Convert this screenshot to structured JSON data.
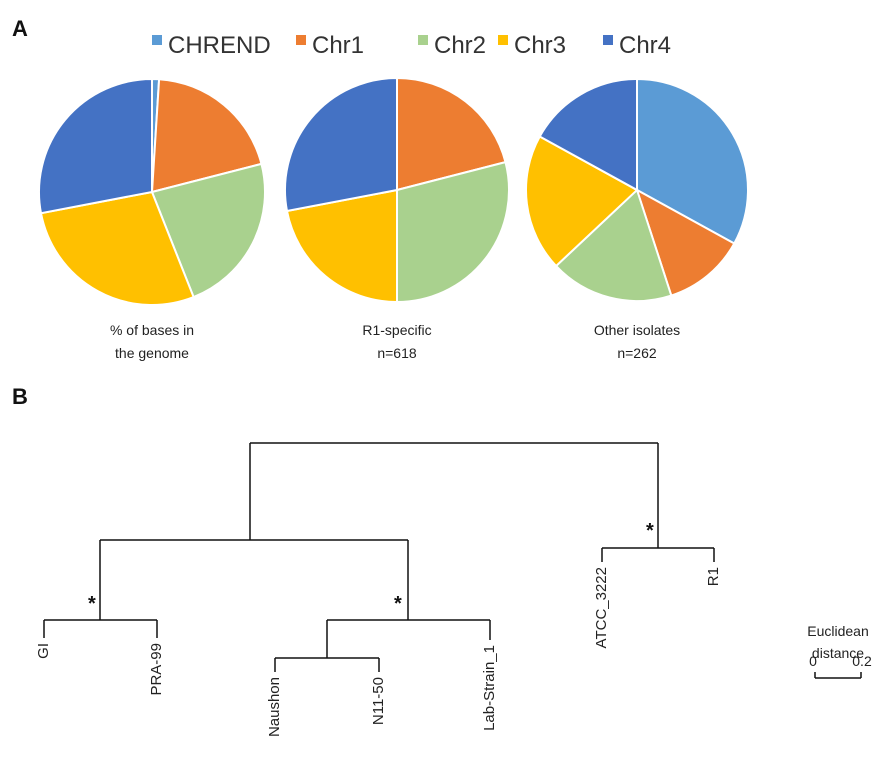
{
  "figure": {
    "panel_a_label": "A",
    "panel_b_label": "B"
  },
  "chart_data": [
    {
      "type": "pie",
      "legend": {
        "placement": "top",
        "entries": [
          {
            "name": "CHREND",
            "color": "#5b9bd5"
          },
          {
            "name": "Chr1",
            "color": "#ed7d31"
          },
          {
            "name": "Chr2",
            "color": "#a9d18e"
          },
          {
            "name": "Chr3",
            "color": "#ffc000"
          },
          {
            "name": "Chr4",
            "color": "#4472c4"
          }
        ]
      },
      "pies": [
        {
          "caption_lines": [
            "% of bases in",
            "the genome"
          ],
          "slices": [
            {
              "name": "CHREND",
              "value": 1
            },
            {
              "name": "Chr1",
              "value": 20
            },
            {
              "name": "Chr2",
              "value": 23
            },
            {
              "name": "Chr3",
              "value": 28
            },
            {
              "name": "Chr4",
              "value": 28
            }
          ]
        },
        {
          "caption_lines": [
            "R1-specific",
            "n=618"
          ],
          "slices": [
            {
              "name": "CHREND",
              "value": 0
            },
            {
              "name": "Chr1",
              "value": 21
            },
            {
              "name": "Chr2",
              "value": 29
            },
            {
              "name": "Chr3",
              "value": 22
            },
            {
              "name": "Chr4",
              "value": 28
            }
          ]
        },
        {
          "caption_lines": [
            "Other isolates",
            "n=262"
          ],
          "slices": [
            {
              "name": "CHREND",
              "value": 33
            },
            {
              "name": "Chr1",
              "value": 12
            },
            {
              "name": "Chr2",
              "value": 18
            },
            {
              "name": "Chr3",
              "value": 20
            },
            {
              "name": "Chr4",
              "value": 17
            }
          ]
        }
      ]
    },
    {
      "type": "dendrogram",
      "leaves": [
        "GI",
        "PRA-99",
        "Naushon",
        "N11-50",
        "Lab-Strain_1",
        "ATCC_3222",
        "R1"
      ],
      "significance_marker": "*",
      "scale_bar": {
        "label_lines": [
          "Euclidean",
          "distance"
        ],
        "ticks": [
          "0",
          "0.2"
        ]
      }
    }
  ]
}
